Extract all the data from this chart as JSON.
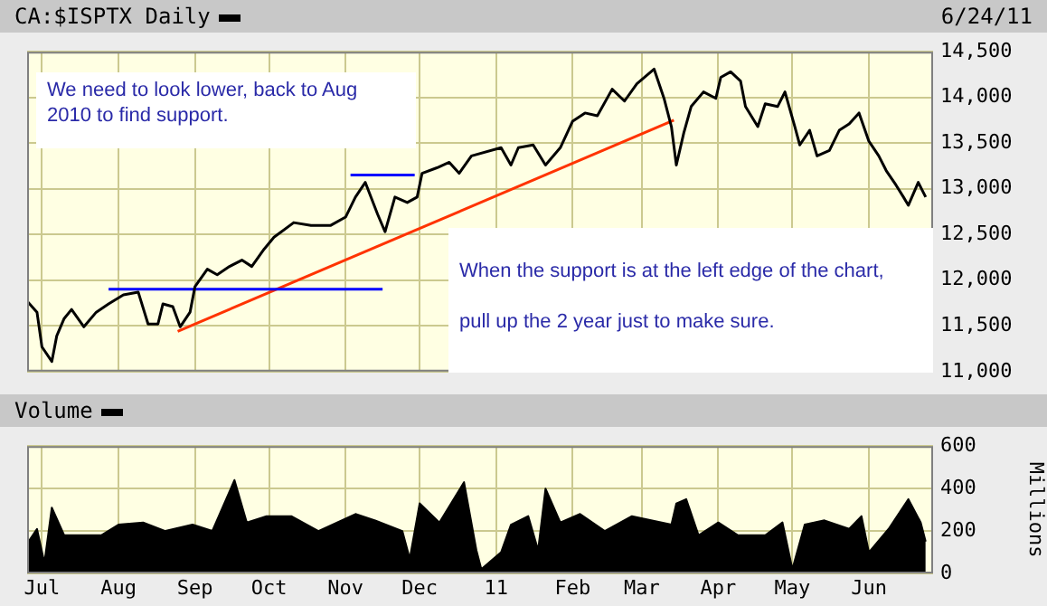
{
  "chart_data": [
    {
      "type": "line",
      "subtitle": "6/24/11",
      "marker": "none",
      "grid": true,
      "legend": "top left",
      "tick_labels": "y",
      "annotations": [
        "We need to look lower, back to Aug 2010 to find support.",
        "When the support is at the left edge of the chart, pull up the 2 year just to make sure."
      ],
      "xlim": [
        "2010-06-25",
        "2011-06-27"
      ],
      "xticks": [
        {
          "value": "2010-07-01",
          "label": null
        },
        {
          "value": "2010-08-01",
          "label": null
        },
        {
          "value": "2010-09-01",
          "label": null
        },
        {
          "value": "2010-10-01",
          "label": null
        },
        {
          "value": "2010-11-01",
          "label": null
        },
        {
          "value": "2010-12-01",
          "label": null
        },
        {
          "value": "2011-01-01",
          "label": null
        },
        {
          "value": "2011-02-01",
          "label": null
        },
        {
          "value": "2011-03-01",
          "label": null
        },
        {
          "value": "2011-04-01",
          "label": null
        },
        {
          "value": "2011-05-01",
          "label": null
        },
        {
          "value": "2011-06-01",
          "label": null
        }
      ],
      "ylim": [
        11000,
        14500
      ],
      "yticks": [
        {
          "value": 11000,
          "label": "11,000"
        },
        {
          "value": 11500,
          "label": "11,500"
        },
        {
          "value": 12000,
          "label": "12,000"
        },
        {
          "value": 12500,
          "label": "12,500"
        },
        {
          "value": 13000,
          "label": "13,000"
        },
        {
          "value": 13500,
          "label": "13,500"
        },
        {
          "value": 14000,
          "label": "14,000"
        },
        {
          "value": 14500,
          "label": "14,500"
        }
      ],
      "series": [
        {
          "name": "CA:$ISPTX Daily",
          "color": "#000000",
          "x": [
            "2010-06-25",
            "2010-06-29",
            "2010-07-01",
            "2010-07-05",
            "2010-07-07",
            "2010-07-10",
            "2010-07-13",
            "2010-07-18",
            "2010-07-23",
            "2010-07-28",
            "2010-08-03",
            "2010-08-09",
            "2010-08-13",
            "2010-08-17",
            "2010-08-19",
            "2010-08-23",
            "2010-08-26",
            "2010-08-30",
            "2010-09-01",
            "2010-09-06",
            "2010-09-10",
            "2010-09-15",
            "2010-09-20",
            "2010-09-24",
            "2010-09-29",
            "2010-10-03",
            "2010-10-11",
            "2010-10-18",
            "2010-10-26",
            "2010-11-01",
            "2010-11-05",
            "2010-11-09",
            "2010-11-14",
            "2010-11-17",
            "2010-11-21",
            "2010-11-26",
            "2010-11-30",
            "2010-12-02",
            "2010-12-08",
            "2010-12-13",
            "2010-12-17",
            "2010-12-22",
            "2011-01-03",
            "2011-01-07",
            "2011-01-10",
            "2011-01-16",
            "2011-01-21",
            "2011-01-27",
            "2011-02-01",
            "2011-02-06",
            "2011-02-11",
            "2011-02-17",
            "2011-02-22",
            "2011-02-27",
            "2011-03-06",
            "2011-03-10",
            "2011-03-13",
            "2011-03-15",
            "2011-03-18",
            "2011-03-21",
            "2011-03-26",
            "2011-03-31",
            "2011-04-02",
            "2011-04-06",
            "2011-04-10",
            "2011-04-12",
            "2011-04-17",
            "2011-04-20",
            "2011-04-25",
            "2011-04-28",
            "2011-05-02",
            "2011-05-04",
            "2011-05-08",
            "2011-05-11",
            "2011-05-16",
            "2011-05-20",
            "2011-05-24",
            "2011-05-28",
            "2011-06-01",
            "2011-06-05",
            "2011-06-08",
            "2011-06-12",
            "2011-06-15",
            "2011-06-17",
            "2011-06-21",
            "2011-06-24"
          ],
          "values": [
            11770,
            11650,
            11270,
            11110,
            11390,
            11580,
            11680,
            11490,
            11650,
            11740,
            11840,
            11870,
            11520,
            11520,
            11740,
            11710,
            11490,
            11650,
            11930,
            12120,
            12060,
            12150,
            12220,
            12150,
            12340,
            12470,
            12630,
            12600,
            12600,
            12690,
            12910,
            13070,
            12720,
            12530,
            12910,
            12850,
            12910,
            13170,
            13230,
            13290,
            13170,
            13360,
            13450,
            13260,
            13450,
            13480,
            13260,
            13450,
            13740,
            13830,
            13800,
            14090,
            13960,
            14150,
            14310,
            13990,
            13680,
            13260,
            13610,
            13900,
            14060,
            13990,
            14220,
            14280,
            14180,
            13900,
            13680,
            13930,
            13900,
            14060,
            13680,
            13480,
            13640,
            13360,
            13420,
            13640,
            13710,
            13830,
            13520,
            13360,
            13200,
            13040,
            12910,
            12820,
            13070,
            12910
          ]
        },
        {
          "color": "#0000ff",
          "x": [
            "2010-07-28",
            "2010-11-16"
          ],
          "values": [
            11900,
            11900
          ]
        },
        {
          "color": "#0000ff",
          "x": [
            "2010-11-03",
            "2010-11-29"
          ],
          "values": [
            13150,
            13150
          ]
        },
        {
          "color": "#ff3300",
          "x": [
            "2010-08-25",
            "2011-03-14"
          ],
          "values": [
            11440,
            13750
          ]
        }
      ]
    },
    {
      "type": "area",
      "ylabel": "Millions",
      "marker": "none",
      "grid": true,
      "legend": "top left",
      "xlim": [
        "2010-06-25",
        "2011-06-27"
      ],
      "xticks": [
        {
          "value": "2010-07-01",
          "label": "Jul"
        },
        {
          "value": "2010-08-01",
          "label": "Aug"
        },
        {
          "value": "2010-09-01",
          "label": "Sep"
        },
        {
          "value": "2010-10-01",
          "label": "Oct"
        },
        {
          "value": "2010-11-01",
          "label": "Nov"
        },
        {
          "value": "2010-12-01",
          "label": "Dec"
        },
        {
          "value": "2011-01-01",
          "label": "11"
        },
        {
          "value": "2011-02-01",
          "label": "Feb"
        },
        {
          "value": "2011-03-01",
          "label": "Mar"
        },
        {
          "value": "2011-04-01",
          "label": "Apr"
        },
        {
          "value": "2011-05-01",
          "label": "May"
        },
        {
          "value": "2011-06-01",
          "label": "Jun"
        }
      ],
      "ylim": [
        0,
        600
      ],
      "yticks": [
        0,
        200,
        400,
        600
      ],
      "series": [
        {
          "name": "Volume",
          "color": "#000000",
          "x": [
            "2010-06-25",
            "2010-06-29",
            "2010-07-02",
            "2010-07-05",
            "2010-07-10",
            "2010-07-17",
            "2010-07-25",
            "2010-08-01",
            "2010-08-11",
            "2010-08-20",
            "2010-08-31",
            "2010-09-08",
            "2010-09-17",
            "2010-09-22",
            "2010-09-30",
            "2010-10-10",
            "2010-10-21",
            "2010-11-05",
            "2010-11-13",
            "2010-11-24",
            "2010-11-27",
            "2010-12-01",
            "2010-12-09",
            "2010-12-19",
            "2010-12-24",
            "2010-12-26",
            "2011-01-03",
            "2011-01-07",
            "2011-01-14",
            "2011-01-18",
            "2011-01-21",
            "2011-01-27",
            "2011-02-04",
            "2011-02-14",
            "2011-02-25",
            "2011-03-13",
            "2011-03-15",
            "2011-03-19",
            "2011-03-24",
            "2011-04-01",
            "2011-04-09",
            "2011-04-20",
            "2011-04-27",
            "2011-05-01",
            "2011-05-06",
            "2011-05-14",
            "2011-05-24",
            "2011-05-29",
            "2011-06-01",
            "2011-06-09",
            "2011-06-17",
            "2011-06-22",
            "2011-06-24"
          ],
          "values": [
            140,
            210,
            50,
            310,
            180,
            180,
            180,
            230,
            240,
            200,
            230,
            200,
            440,
            240,
            270,
            270,
            200,
            280,
            250,
            200,
            70,
            330,
            240,
            430,
            110,
            20,
            100,
            230,
            270,
            110,
            400,
            240,
            280,
            200,
            270,
            230,
            330,
            350,
            180,
            240,
            180,
            180,
            240,
            20,
            230,
            250,
            210,
            270,
            100,
            210,
            350,
            240,
            150
          ]
        }
      ]
    }
  ]
}
